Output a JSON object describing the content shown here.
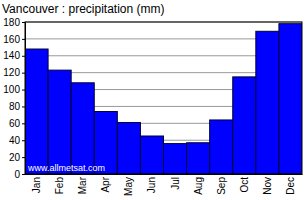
{
  "chart_data": {
    "type": "bar",
    "title": "Vancouver : precipitation (mm)",
    "categories": [
      "Jan",
      "Feb",
      "Mar",
      "Apr",
      "May",
      "Jun",
      "Jul",
      "Aug",
      "Sep",
      "Oct",
      "Nov",
      "Dec"
    ],
    "values": [
      148,
      123,
      108,
      74,
      61,
      45,
      36,
      37,
      64,
      115,
      169,
      178
    ],
    "color": "#0000ff",
    "ylim": [
      0,
      180
    ],
    "yticks": [
      0,
      20,
      40,
      60,
      80,
      100,
      120,
      140,
      160,
      180
    ],
    "grid": true,
    "annotations": [
      "www.allmetsat.com"
    ]
  }
}
